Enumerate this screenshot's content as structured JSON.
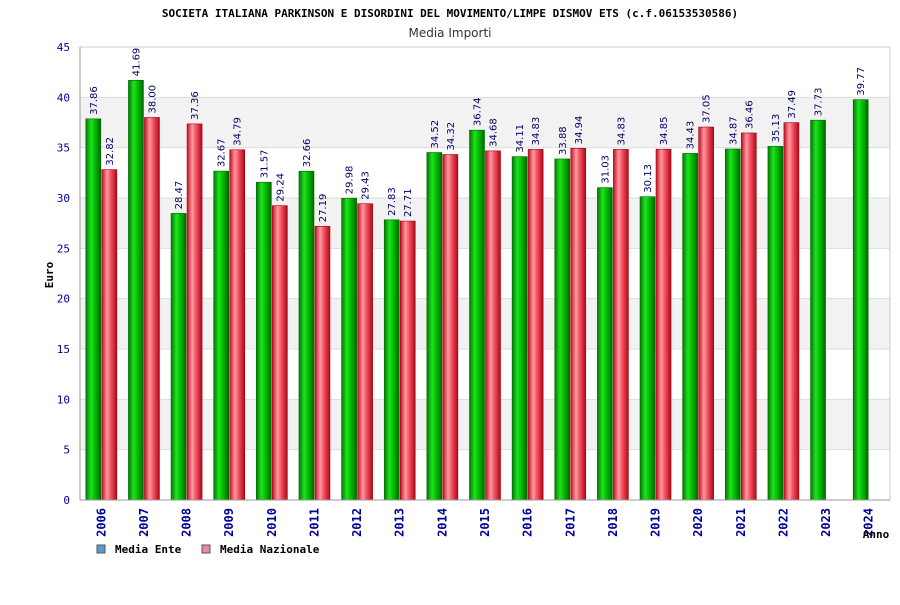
{
  "chart_data": {
    "type": "bar",
    "title": "SOCIETA ITALIANA PARKINSON E DISORDINI DEL MOVIMENTO/LIMPE DISMOV ETS (c.f.06153530586)",
    "subtitle": "Media Importi",
    "xlabel": "Anno",
    "ylabel": "Euro",
    "ylim": [
      0,
      45
    ],
    "yticks": [
      "0",
      "5",
      "10",
      "15",
      "20",
      "25",
      "30",
      "35",
      "40",
      "45"
    ],
    "categories": [
      "2006",
      "2007",
      "2008",
      "2009",
      "2010",
      "2011",
      "2012",
      "2013",
      "2014",
      "2015",
      "2016",
      "2017",
      "2018",
      "2019",
      "2020",
      "2021",
      "2022",
      "2023",
      "2024"
    ],
    "series": [
      {
        "name": "Media Ente",
        "color": "#00cc00",
        "values": [
          37.86,
          41.69,
          28.47,
          32.67,
          31.57,
          32.66,
          29.98,
          27.83,
          34.52,
          36.74,
          34.11,
          33.88,
          31.03,
          30.13,
          34.43,
          34.87,
          35.13,
          37.73,
          39.77
        ],
        "labels": [
          "37.86",
          "41.69",
          "28.47",
          "32.67",
          "31.57",
          "32.66",
          "29.98",
          "27.83",
          "34.52",
          "36.74",
          "34.11",
          "33.88",
          "31.03",
          "30.13",
          "34.43",
          "34.87",
          "35.13",
          "37.73",
          "39.77"
        ]
      },
      {
        "name": "Media Nazionale",
        "color": "#e8363f",
        "values": [
          32.82,
          38.0,
          37.36,
          34.79,
          29.24,
          27.19,
          29.43,
          27.71,
          34.32,
          34.68,
          34.83,
          34.94,
          34.83,
          34.85,
          37.05,
          36.46,
          37.49,
          null,
          null
        ],
        "labels": [
          "32.82",
          "38.00",
          "37.36",
          "34.79",
          "29.24",
          "27.19",
          "29.43",
          "27.71",
          "34.32",
          "34.68",
          "34.83",
          "34.94",
          "34.83",
          "34.85",
          "37.05",
          "36.46",
          "37.49",
          null,
          null
        ]
      }
    ],
    "legend": [
      {
        "label": "Media Ente",
        "color": "#5b9bd5"
      },
      {
        "label": "Media Nazionale",
        "color": "#e88aa0"
      }
    ],
    "legend_position": "bottom-left",
    "grid": true
  }
}
